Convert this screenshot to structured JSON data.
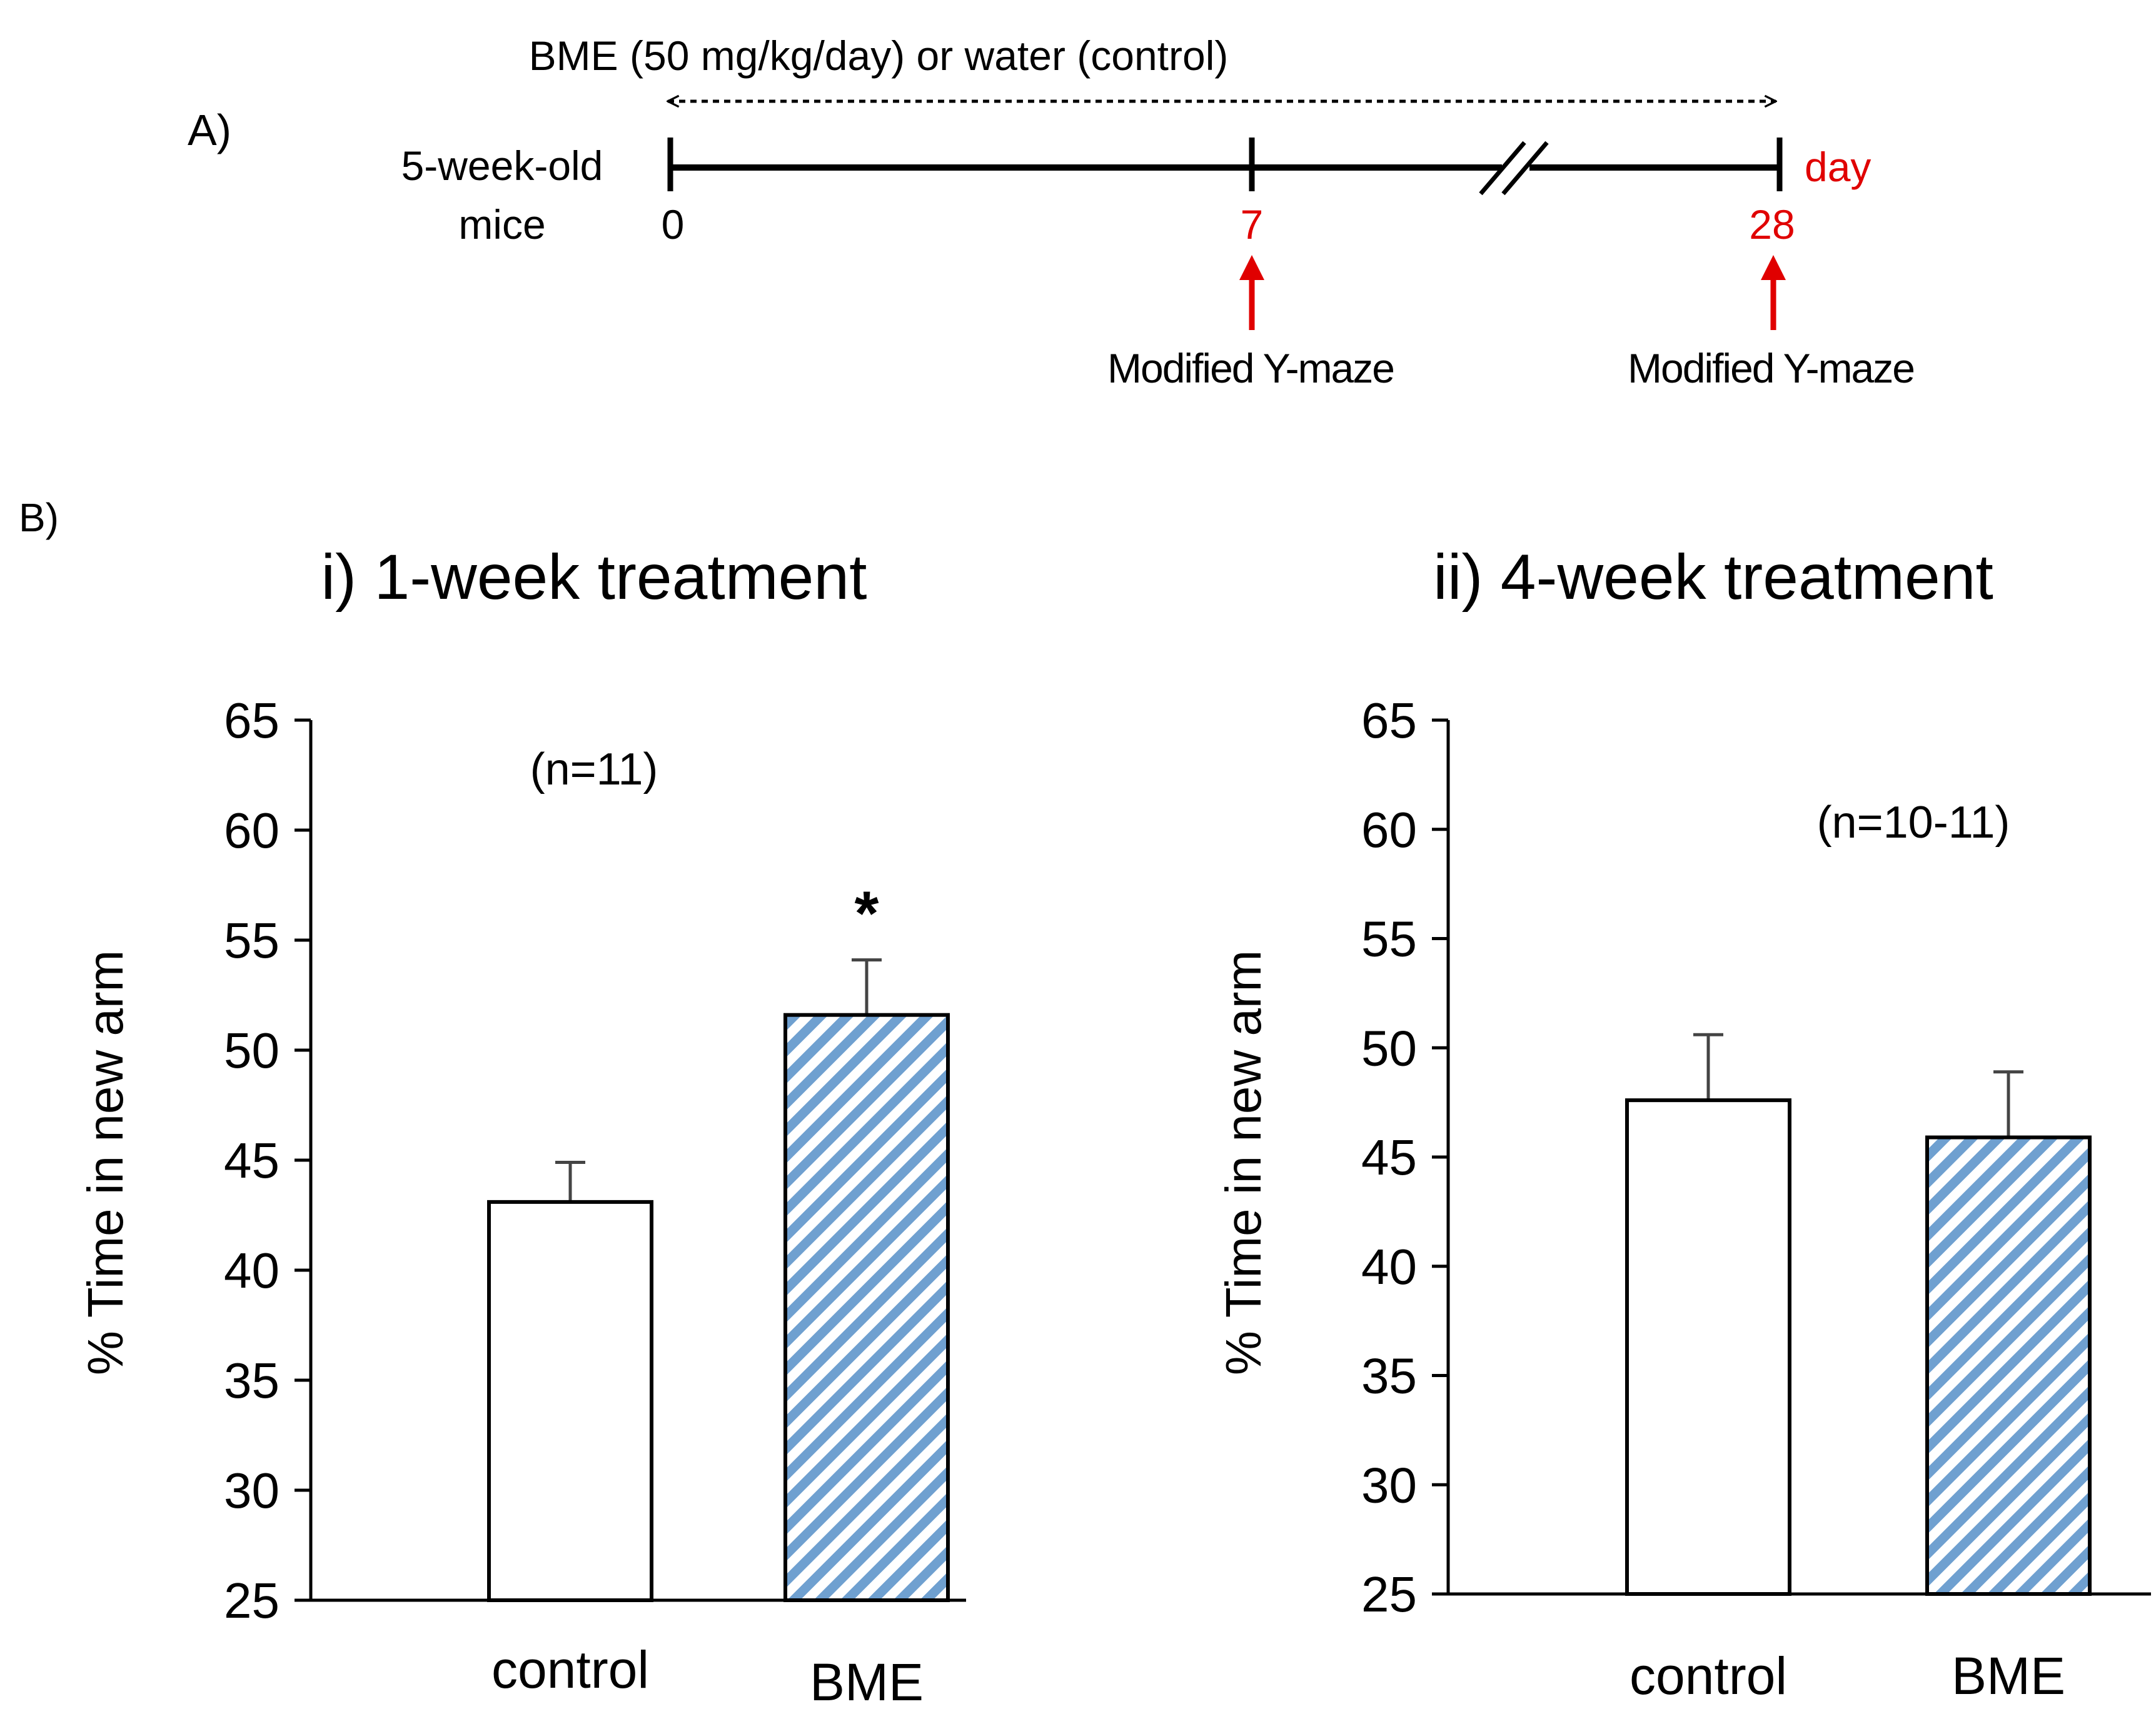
{
  "panel_a": {
    "label": "A)",
    "treatment": "BME (50 mg/kg/day) or water (control)",
    "subject_line1": "5-week-old",
    "subject_line2": "mice",
    "day_unit": "day",
    "ticks": [
      {
        "day": "0",
        "color": "#000000"
      },
      {
        "day": "7",
        "color": "#e00000"
      },
      {
        "day": "28",
        "color": "#e00000"
      }
    ],
    "test_label": "Modified Y-maze",
    "arrow_color": "#e00000"
  },
  "panel_b": {
    "label": "B)"
  },
  "colors": {
    "bme_stripe": "#6fa0d0",
    "axis": "#000000",
    "error_bar": "#444444"
  },
  "chart_data": [
    {
      "type": "bar",
      "title": "i) 1-week treatment",
      "ylabel": "% Time in new arm",
      "xlabel": "",
      "ylim": [
        25,
        65
      ],
      "yticks": [
        25,
        30,
        35,
        40,
        45,
        50,
        55,
        60,
        65
      ],
      "categories": [
        "control",
        "BME"
      ],
      "values": [
        43.1,
        51.6
      ],
      "errors": [
        1.8,
        2.5
      ],
      "fills": [
        "white",
        "hatched-blue"
      ],
      "significance": [
        "",
        "*"
      ],
      "annotation": "(n=11)",
      "grid": false
    },
    {
      "type": "bar",
      "title": "ii) 4-week treatment",
      "ylabel": "% Time in new arm",
      "xlabel": "",
      "ylim": [
        25,
        65
      ],
      "yticks": [
        25,
        30,
        35,
        40,
        45,
        50,
        55,
        60,
        65
      ],
      "categories": [
        "control",
        "BME"
      ],
      "values": [
        47.6,
        45.9
      ],
      "errors": [
        3.0,
        3.0
      ],
      "fills": [
        "white",
        "hatched-blue"
      ],
      "significance": [
        "",
        ""
      ],
      "annotation": "(n=10-11)",
      "grid": false
    }
  ]
}
